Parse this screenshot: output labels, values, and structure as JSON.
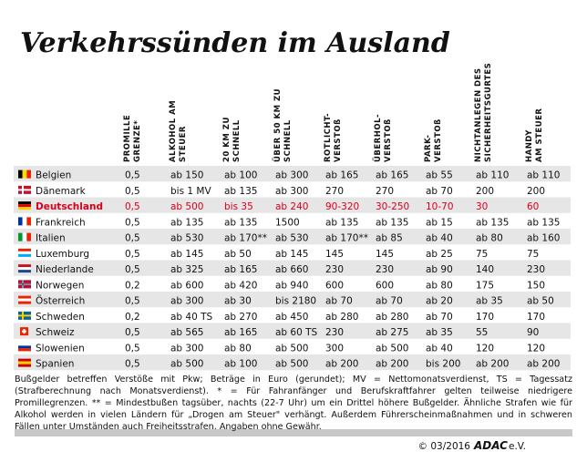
{
  "header": {
    "title": "Verkehrssünden im Ausland"
  },
  "table": {
    "columns": [
      [
        "PROMILLE",
        "GRENZE*"
      ],
      [
        "ALKOHOL AM",
        "STEUER"
      ],
      [
        "20 KM ZU",
        "SCHNELL"
      ],
      [
        "ÜBER 50 KM ZU",
        "SCHNELL"
      ],
      [
        "ROTLICHT-",
        "VERSTOß"
      ],
      [
        "ÜBERHOL-",
        "VERSTOß"
      ],
      [
        "PARK-",
        "VERSTOß"
      ],
      [
        "NICHTANLEGEN DES",
        "SICHERHEITSGURTES"
      ],
      [
        "HANDY",
        "AM STEUER"
      ]
    ],
    "rows": [
      {
        "country": "Belgien",
        "values": [
          "0,5",
          "ab 150",
          "ab 100",
          "ab 300",
          "ab 165",
          "ab 165",
          "ab 55",
          "ab 110",
          "ab 110"
        ]
      },
      {
        "country": "Dänemark",
        "values": [
          "0,5",
          "bis 1 MV",
          "ab 135",
          "ab 300",
          "270",
          "270",
          "ab 70",
          "200",
          "200"
        ]
      },
      {
        "country": "Deutschland",
        "color": "#d9001b",
        "values": [
          "0,5",
          "ab 500",
          "bis 35",
          "ab 240",
          "90-320",
          "30-250",
          "10-70",
          "30",
          "60"
        ]
      },
      {
        "country": "Frankreich",
        "values": [
          "0,5",
          "ab 135",
          "ab 135",
          "1500",
          "ab 135",
          "ab 135",
          "ab 15",
          "ab 135",
          "ab 135"
        ]
      },
      {
        "country": "Italien",
        "values": [
          "0,5",
          "ab 530",
          "ab 170**",
          "ab 530",
          "ab 170**",
          "ab 85",
          "ab 40",
          "ab 80",
          "ab 160"
        ]
      },
      {
        "country": "Luxemburg",
        "values": [
          "0,5",
          "ab 145",
          "ab 50",
          "ab 145",
          "145",
          "145",
          "ab 25",
          "75",
          "75"
        ]
      },
      {
        "country": "Niederlande",
        "values": [
          "0,5",
          "ab 325",
          "ab 165",
          "ab 660",
          "230",
          "230",
          "ab 90",
          "140",
          "230"
        ]
      },
      {
        "country": "Norwegen",
        "values": [
          "0,2",
          "ab 600",
          "ab 420",
          "ab 940",
          "600",
          "600",
          "ab 80",
          "175",
          "150"
        ]
      },
      {
        "country": "Österreich",
        "values": [
          "0,5",
          "ab 300",
          "ab 30",
          "bis 2180",
          "ab 70",
          "ab 70",
          "ab 20",
          "ab 35",
          "ab 50"
        ]
      },
      {
        "country": "Schweden",
        "values": [
          "0,2",
          "ab 40 TS",
          "ab 270",
          "ab 450",
          "ab 280",
          "ab 280",
          "ab 70",
          "170",
          "170"
        ]
      },
      {
        "country": "Schweiz",
        "values": [
          "0,5",
          "ab 565",
          "ab 165",
          "ab 60 TS",
          "230",
          "ab 275",
          "ab 35",
          "55",
          "90"
        ]
      },
      {
        "country": "Slowenien",
        "values": [
          "0,5",
          "ab 300",
          "ab 80",
          "ab 500",
          "300",
          "ab 500",
          "ab 40",
          "120",
          "120"
        ]
      },
      {
        "country": "Spanien",
        "values": [
          "0,5",
          "ab 500",
          "ab 100",
          "ab 500",
          "ab 200",
          "ab 200",
          "bis 200",
          "ab 200",
          "ab 200"
        ]
      }
    ]
  },
  "footnote": "Bußgelder betreffen Verstöße mit Pkw; Beträge in Euro (gerundet); MV = Nettomonatsverdienst, TS = Tagessatz (Strafberechnung nach Monatsverdienst). * = Für Fahranfänger und Berufskraftfahrer gelten teilweise niedrigere Promillegrenzen. ** = Mindestbußen tagsüber, nachts (22-7 Uhr) um ein Drittel höhere Bußgelder. Ähnliche Strafen wie für Alkohol werden in vielen Ländern für „Drogen am Steuer\" verhängt. Außerdem Führerscheinmaßnahmen und in schweren Fällen unter Umständen auch Freiheitsstrafen. Angaben ohne Gewähr.",
  "footer": {
    "copyright": "© 03/2016",
    "brand": "ADAC",
    "suffix": "e.V."
  }
}
